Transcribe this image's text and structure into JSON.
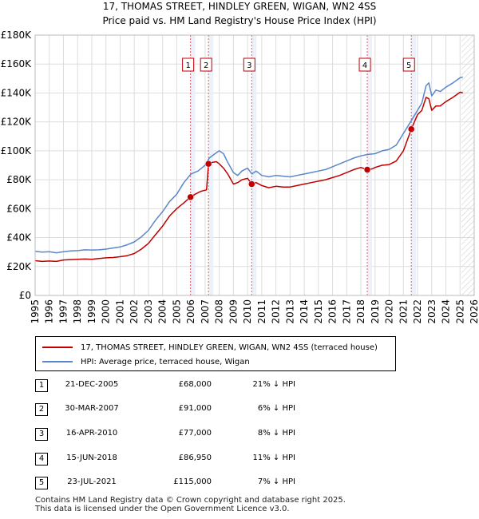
{
  "title_line1": "17, THOMAS STREET, HINDLEY GREEN, WIGAN, WN2 4SS",
  "title_line2": "Price paid vs. HM Land Registry's House Price Index (HPI)",
  "chart_data": {
    "type": "line",
    "xlim": [
      1995,
      2026
    ],
    "ylim": [
      0,
      180000
    ],
    "y_ticks": [
      {
        "value": 0,
        "label": "£0"
      },
      {
        "value": 20000,
        "label": "£20K"
      },
      {
        "value": 40000,
        "label": "£40K"
      },
      {
        "value": 60000,
        "label": "£60K"
      },
      {
        "value": 80000,
        "label": "£80K"
      },
      {
        "value": 100000,
        "label": "£100K"
      },
      {
        "value": 120000,
        "label": "£120K"
      },
      {
        "value": 140000,
        "label": "£140K"
      },
      {
        "value": 160000,
        "label": "£160K"
      },
      {
        "value": 180000,
        "label": "£180K"
      }
    ],
    "x_ticks": [
      "1995",
      "1996",
      "1997",
      "1998",
      "1999",
      "2000",
      "2001",
      "2002",
      "2003",
      "2004",
      "2005",
      "2006",
      "2007",
      "2008",
      "2009",
      "2010",
      "2011",
      "2012",
      "2013",
      "2014",
      "2015",
      "2016",
      "2017",
      "2018",
      "2019",
      "2020",
      "2021",
      "2022",
      "2023",
      "2024",
      "2025",
      "2026"
    ],
    "forecast_start": 2025.1,
    "series": [
      {
        "name": "HPI: Average price, terraced house, Wigan",
        "color": "#5b87c8",
        "points": [
          [
            1995,
            30500
          ],
          [
            1995.5,
            30000
          ],
          [
            1996,
            30200
          ],
          [
            1996.5,
            29500
          ],
          [
            1997,
            30200
          ],
          [
            1997.5,
            30800
          ],
          [
            1998,
            31000
          ],
          [
            1998.5,
            31500
          ],
          [
            1999,
            31400
          ],
          [
            1999.5,
            31500
          ],
          [
            2000,
            32000
          ],
          [
            2000.5,
            32800
          ],
          [
            2001,
            33500
          ],
          [
            2001.5,
            35000
          ],
          [
            2002,
            37000
          ],
          [
            2002.5,
            40500
          ],
          [
            2003,
            45000
          ],
          [
            2003.5,
            52000
          ],
          [
            2004,
            58000
          ],
          [
            2004.5,
            65000
          ],
          [
            2005,
            70000
          ],
          [
            2005.5,
            78000
          ],
          [
            2006,
            84000
          ],
          [
            2006.5,
            86000
          ],
          [
            2007,
            90000
          ],
          [
            2007.3,
            95000
          ],
          [
            2007.7,
            98000
          ],
          [
            2008,
            100000
          ],
          [
            2008.3,
            98000
          ],
          [
            2008.6,
            92000
          ],
          [
            2009,
            85000
          ],
          [
            2009.3,
            83000
          ],
          [
            2009.6,
            86000
          ],
          [
            2010,
            88000
          ],
          [
            2010.3,
            84000
          ],
          [
            2010.6,
            86000
          ],
          [
            2011,
            83000
          ],
          [
            2011.5,
            82000
          ],
          [
            2012,
            83000
          ],
          [
            2012.5,
            82500
          ],
          [
            2013,
            82000
          ],
          [
            2013.5,
            83000
          ],
          [
            2014,
            84000
          ],
          [
            2014.5,
            85000
          ],
          [
            2015,
            86000
          ],
          [
            2015.5,
            87000
          ],
          [
            2016,
            89000
          ],
          [
            2016.5,
            91000
          ],
          [
            2017,
            93000
          ],
          [
            2017.5,
            95000
          ],
          [
            2018,
            96500
          ],
          [
            2018.5,
            97500
          ],
          [
            2019,
            98000
          ],
          [
            2019.5,
            100000
          ],
          [
            2020,
            101000
          ],
          [
            2020.5,
            104000
          ],
          [
            2021,
            112000
          ],
          [
            2021.5,
            120000
          ],
          [
            2022,
            128000
          ],
          [
            2022.3,
            133000
          ],
          [
            2022.6,
            145000
          ],
          [
            2022.8,
            147000
          ],
          [
            2023,
            138000
          ],
          [
            2023.3,
            142000
          ],
          [
            2023.6,
            141000
          ],
          [
            2024,
            144000
          ],
          [
            2024.5,
            147000
          ],
          [
            2025,
            150500
          ],
          [
            2025.2,
            151000
          ]
        ]
      },
      {
        "name": "17, THOMAS STREET, HINDLEY GREEN, WIGAN, WN2 4SS (terraced house)",
        "color": "#c00000",
        "points": [
          [
            1995,
            24000
          ],
          [
            1995.5,
            23500
          ],
          [
            1996,
            23800
          ],
          [
            1996.5,
            23500
          ],
          [
            1997,
            24500
          ],
          [
            1997.5,
            24800
          ],
          [
            1998,
            25000
          ],
          [
            1998.5,
            25200
          ],
          [
            1999,
            25000
          ],
          [
            1999.5,
            25500
          ],
          [
            2000,
            26000
          ],
          [
            2000.5,
            26200
          ],
          [
            2001,
            26800
          ],
          [
            2001.5,
            27500
          ],
          [
            2002,
            29000
          ],
          [
            2002.5,
            32000
          ],
          [
            2003,
            36000
          ],
          [
            2003.5,
            42000
          ],
          [
            2004,
            48000
          ],
          [
            2004.5,
            55000
          ],
          [
            2005,
            60000
          ],
          [
            2005.5,
            64000
          ],
          [
            2005.97,
            68000
          ],
          [
            2006.3,
            70000
          ],
          [
            2006.7,
            72000
          ],
          [
            2007.1,
            73000
          ],
          [
            2007.24,
            91000
          ],
          [
            2007.5,
            92000
          ],
          [
            2007.8,
            92500
          ],
          [
            2008,
            91000
          ],
          [
            2008.3,
            88000
          ],
          [
            2008.6,
            84000
          ],
          [
            2009,
            77000
          ],
          [
            2009.3,
            78000
          ],
          [
            2009.6,
            80000
          ],
          [
            2010,
            81000
          ],
          [
            2010.29,
            77000
          ],
          [
            2010.6,
            78000
          ],
          [
            2011,
            76000
          ],
          [
            2011.5,
            74500
          ],
          [
            2012,
            75500
          ],
          [
            2012.5,
            75000
          ],
          [
            2013,
            75000
          ],
          [
            2013.5,
            76000
          ],
          [
            2014,
            77000
          ],
          [
            2014.5,
            78000
          ],
          [
            2015,
            79000
          ],
          [
            2015.5,
            80000
          ],
          [
            2016,
            81500
          ],
          [
            2016.5,
            83000
          ],
          [
            2017,
            85000
          ],
          [
            2017.5,
            87000
          ],
          [
            2018,
            88500
          ],
          [
            2018.45,
            86950
          ],
          [
            2018.8,
            87500
          ],
          [
            2019,
            88500
          ],
          [
            2019.5,
            90000
          ],
          [
            2020,
            90500
          ],
          [
            2020.5,
            93000
          ],
          [
            2021,
            100000
          ],
          [
            2021.56,
            115000
          ],
          [
            2022,
            125000
          ],
          [
            2022.3,
            128000
          ],
          [
            2022.6,
            137000
          ],
          [
            2022.8,
            136000
          ],
          [
            2023,
            128000
          ],
          [
            2023.3,
            131000
          ],
          [
            2023.6,
            131000
          ],
          [
            2024,
            134000
          ],
          [
            2024.5,
            137000
          ],
          [
            2025,
            140500
          ],
          [
            2025.2,
            140000
          ]
        ]
      }
    ],
    "sale_markers": [
      {
        "label": "1",
        "x": 2005.97,
        "y": 68000
      },
      {
        "label": "2",
        "x": 2007.24,
        "y": 91000
      },
      {
        "label": "3",
        "x": 2010.29,
        "y": 77000
      },
      {
        "label": "4",
        "x": 2018.45,
        "y": 86950
      },
      {
        "label": "5",
        "x": 2021.56,
        "y": 115000
      }
    ]
  },
  "legend": {
    "property_label": "17, THOMAS STREET, HINDLEY GREEN, WIGAN, WN2 4SS (terraced house)",
    "hpi_label": "HPI: Average price, terraced house, Wigan",
    "property_color": "#c00000",
    "hpi_color": "#5b87c8"
  },
  "sales": [
    {
      "num": "1",
      "date": "21-DEC-2005",
      "price": "£68,000",
      "hpi": "21% ↓ HPI"
    },
    {
      "num": "2",
      "date": "30-MAR-2007",
      "price": "£91,000",
      "hpi": "6% ↓ HPI"
    },
    {
      "num": "3",
      "date": "16-APR-2010",
      "price": "£77,000",
      "hpi": "8% ↓ HPI"
    },
    {
      "num": "4",
      "date": "15-JUN-2018",
      "price": "£86,950",
      "hpi": "11% ↓ HPI"
    },
    {
      "num": "5",
      "date": "23-JUL-2021",
      "price": "£115,000",
      "hpi": "7% ↓ HPI"
    }
  ],
  "footer": {
    "line1": "Contains HM Land Registry data © Crown copyright and database right 2025.",
    "line2": "This data is licensed under the Open Government Licence v3.0."
  }
}
